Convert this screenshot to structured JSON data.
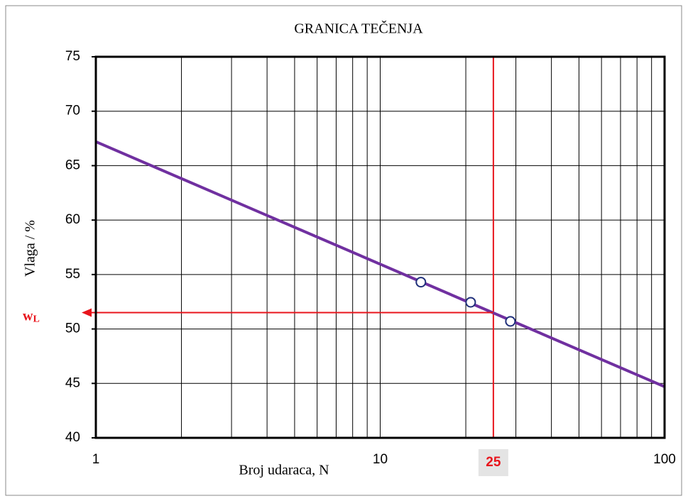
{
  "chart_data": {
    "type": "line",
    "title": "GRANICA TEČENJA",
    "x_label": "Broj udaraca, N",
    "y_label": "Vlaga / %",
    "x_log": true,
    "xlim": [
      1,
      100
    ],
    "xticks": [
      1,
      10,
      100
    ],
    "x_minor_grid": [
      2,
      3,
      4,
      5,
      6,
      7,
      8,
      9,
      20,
      30,
      40,
      50,
      60,
      70,
      80,
      90
    ],
    "ylim": [
      40,
      75
    ],
    "yticks": [
      40,
      45,
      50,
      55,
      60,
      65,
      70,
      75
    ],
    "grid": true,
    "series": [
      {
        "style": "line",
        "color": "#7030a0",
        "x": [
          1,
          100
        ],
        "values": [
          67.2,
          44.7
        ]
      },
      {
        "style": "points",
        "color": "#1f2f7a",
        "x": [
          13.9,
          20.8,
          28.7
        ],
        "values": [
          54.3,
          52.45,
          50.7
        ]
      }
    ],
    "reference": {
      "x": 25,
      "y": 51.5,
      "label": "w",
      "label_sub": "L",
      "color": "#e8141c"
    }
  }
}
